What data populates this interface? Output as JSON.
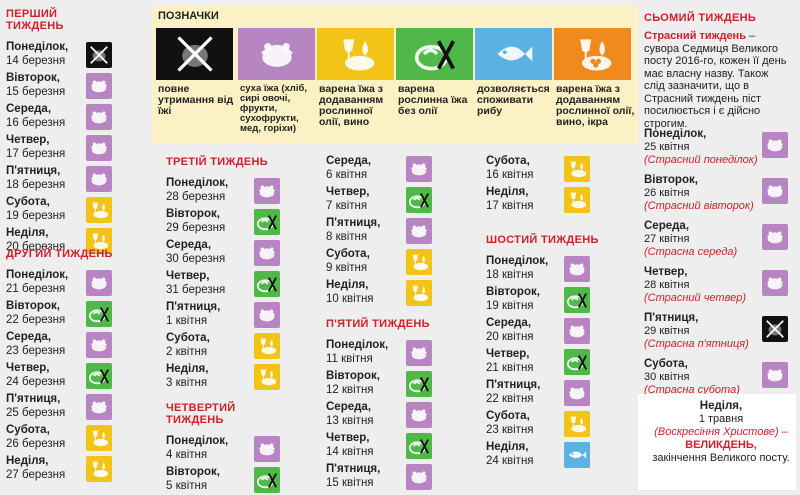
{
  "legend": {
    "title": "ПОЗНАЧКИ",
    "items": [
      {
        "color": "#111111",
        "icon": "no-food-icon",
        "text": "повне утримання від їжі"
      },
      {
        "color": "#b785c2",
        "icon": "dry-food-icon",
        "text": "суха їжа (хліб, сирі овочі, фрукти, сухофрукти, мед, горіхи)"
      },
      {
        "color": "#f2c418",
        "icon": "cooked-oil-wine-icon",
        "text": "варена їжа з додаванням рослинної олії, вино"
      },
      {
        "color": "#4fb848",
        "icon": "plant-food-no-oil-icon",
        "text": "варена рослинна їжа без олії"
      },
      {
        "color": "#5ab1e2",
        "icon": "fish-icon",
        "text": "дозволяється споживати рибу"
      },
      {
        "color": "#f08a1e",
        "icon": "cooked-oil-wine-caviar-icon",
        "text": "варена їжа з додаванням рослинної олії, вино, ікра"
      }
    ]
  },
  "weeks": [
    {
      "title": "ПЕРШИЙ ТИЖДЕНЬ",
      "days": [
        {
          "name": "Понеділок,",
          "date": "14 березня",
          "type": "black"
        },
        {
          "name": "Вівторок,",
          "date": "15 березня",
          "type": "purple"
        },
        {
          "name": "Середа,",
          "date": "16 березня",
          "type": "purple"
        },
        {
          "name": "Четвер,",
          "date": "17 березня",
          "type": "purple"
        },
        {
          "name": "П'ятниця,",
          "date": "18 березня",
          "type": "purple"
        },
        {
          "name": "Субота,",
          "date": "19 березня",
          "type": "yellow"
        },
        {
          "name": "Неділя,",
          "date": "20 березня",
          "type": "yellow"
        }
      ]
    },
    {
      "title": "ДРУГИЙ ТИЖДЕНЬ",
      "days": [
        {
          "name": "Понеділок,",
          "date": "21 березня",
          "type": "purple"
        },
        {
          "name": "Вівторок,",
          "date": "22 березня",
          "type": "green"
        },
        {
          "name": "Середа,",
          "date": "23 березня",
          "type": "purple"
        },
        {
          "name": "Четвер,",
          "date": "24 березня",
          "type": "green"
        },
        {
          "name": "П'ятниця,",
          "date": "25 березня",
          "type": "purple"
        },
        {
          "name": "Субота,",
          "date": "26 березня",
          "type": "yellow"
        },
        {
          "name": "Неділя,",
          "date": "27 березня",
          "type": "yellow"
        }
      ]
    },
    {
      "title": "ТРЕТІЙ ТИЖДЕНЬ",
      "days": [
        {
          "name": "Понеділок,",
          "date": "28 березня",
          "type": "purple"
        },
        {
          "name": "Вівторок,",
          "date": "29 березня",
          "type": "green"
        },
        {
          "name": "Середа,",
          "date": "30 березня",
          "type": "purple"
        },
        {
          "name": "Четвер,",
          "date": "31 березня",
          "type": "green"
        },
        {
          "name": "П'ятниця,",
          "date": "1 квітня",
          "type": "purple"
        },
        {
          "name": "Субота,",
          "date": "2 квітня",
          "type": "yellow"
        },
        {
          "name": "Неділя,",
          "date": "3 квітня",
          "type": "yellow"
        }
      ]
    },
    {
      "title": "ЧЕТВЕРТИЙ ТИЖДЕНЬ",
      "days": [
        {
          "name": "Понеділок,",
          "date": "4 квітня",
          "type": "purple"
        },
        {
          "name": "Вівторок,",
          "date": "5 квітня",
          "type": "green"
        }
      ]
    },
    {
      "title": "",
      "days": [
        {
          "name": "Середа,",
          "date": "6 квітня",
          "type": "purple"
        },
        {
          "name": "Четвер,",
          "date": "7 квітня",
          "type": "green"
        },
        {
          "name": "П'ятниця,",
          "date": "8 квітня",
          "type": "purple"
        },
        {
          "name": "Субота,",
          "date": "9 квітня",
          "type": "yellow"
        },
        {
          "name": "Неділя,",
          "date": "10 квітня",
          "type": "yellow"
        }
      ]
    },
    {
      "title": "П'ЯТИЙ ТИЖДЕНЬ",
      "days": [
        {
          "name": "Понеділок,",
          "date": "11 квітня",
          "type": "purple"
        },
        {
          "name": "Вівторок,",
          "date": "12 квітня",
          "type": "green"
        },
        {
          "name": "Середа,",
          "date": "13 квітня",
          "type": "purple"
        },
        {
          "name": "Четвер,",
          "date": "14 квітня",
          "type": "green"
        },
        {
          "name": "П'ятниця,",
          "date": "15 квітня",
          "type": "purple"
        }
      ]
    },
    {
      "title": "",
      "days": [
        {
          "name": "Субота,",
          "date": "16 квітня",
          "type": "yellow"
        },
        {
          "name": "Неділя,",
          "date": "17 квітня",
          "type": "yellow"
        }
      ]
    },
    {
      "title": "ШОСТИЙ ТИЖДЕНЬ",
      "days": [
        {
          "name": "Понеділок,",
          "date": "18 квітня",
          "type": "purple"
        },
        {
          "name": "Вівторок,",
          "date": "19 квітня",
          "type": "green"
        },
        {
          "name": "Середа,",
          "date": "20 квітня",
          "type": "purple"
        },
        {
          "name": "Четвер,",
          "date": "21 квітня",
          "type": "green"
        },
        {
          "name": "П'ятниця,",
          "date": "22 квітня",
          "type": "purple"
        },
        {
          "name": "Субота,",
          "date": "23 квітня",
          "type": "yellow"
        },
        {
          "name": "Неділя,",
          "date": "24 квітня",
          "type": "blue"
        }
      ]
    }
  ],
  "week7": {
    "title": "СЬОМИЙ ТИЖДЕНЬ",
    "intro_bold": "Страсний тиждень",
    "intro_rest": " – сувора Седмиця Великого посту 2016-го, кожен її день має власну назву. Також слід зазначити, що в Страсний тиждень піст посилюється і є дійсно строгим.",
    "days": [
      {
        "name": "Понеділок,",
        "date": "25 квітня",
        "note": "(Страсний понеділок)",
        "type": "purple"
      },
      {
        "name": "Вівторок,",
        "date": "26 квітня",
        "note": "(Страсний вівторок)",
        "type": "purple"
      },
      {
        "name": "Середа,",
        "date": "27 квітня",
        "note": "(Страсна середа)",
        "type": "purple"
      },
      {
        "name": "Четвер,",
        "date": "28 квітня",
        "note": "(Страсний четвер)",
        "type": "purple"
      },
      {
        "name": "П'ятниця,",
        "date": "29 квітня",
        "note": "(Страсна п'ятниця)",
        "type": "black"
      },
      {
        "name": "Субота,",
        "date": "30 квітня",
        "note": "(Страсна субота)",
        "type": "purple"
      }
    ],
    "easter": {
      "name": "Неділя,",
      "date": "1 травня",
      "note": "(Воскресіння Христове) –",
      "holiday": "ВЕЛИКДЕНЬ,",
      "end": "закінчення Великого посту."
    }
  }
}
